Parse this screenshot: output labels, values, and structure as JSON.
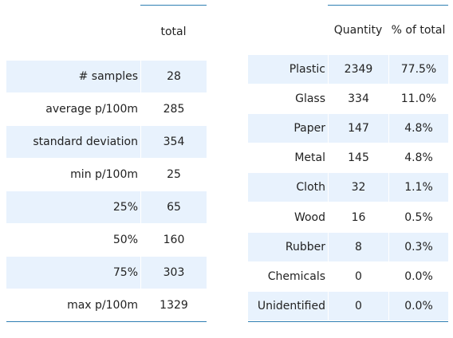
{
  "summary_table": {
    "header": "total",
    "rows": [
      {
        "label": "# samples",
        "value": "28"
      },
      {
        "label": "average p/100m",
        "value": "285"
      },
      {
        "label": "standard deviation",
        "value": "354"
      },
      {
        "label": "min p/100m",
        "value": "25"
      },
      {
        "label": "25%",
        "value": "65"
      },
      {
        "label": "50%",
        "value": "160"
      },
      {
        "label": "75%",
        "value": "303"
      },
      {
        "label": "max p/100m",
        "value": "1329"
      }
    ]
  },
  "material_table": {
    "headers": [
      "Quantity",
      "% of total"
    ],
    "rows": [
      {
        "label": "Plastic",
        "quantity": "2349",
        "percent": "77.5%"
      },
      {
        "label": "Glass",
        "quantity": "334",
        "percent": "11.0%"
      },
      {
        "label": "Paper",
        "quantity": "147",
        "percent": "4.8%"
      },
      {
        "label": "Metal",
        "quantity": "145",
        "percent": "4.8%"
      },
      {
        "label": "Cloth",
        "quantity": "32",
        "percent": "1.1%"
      },
      {
        "label": "Wood",
        "quantity": "16",
        "percent": "0.5%"
      },
      {
        "label": "Rubber",
        "quantity": "8",
        "percent": "0.3%"
      },
      {
        "label": "Chemicals",
        "quantity": "0",
        "percent": "0.0%"
      },
      {
        "label": "Unidentified",
        "quantity": "0",
        "percent": "0.0%"
      }
    ]
  },
  "colors": {
    "row_shade": "#e8f2fd",
    "rule": "#2f7fb3",
    "text": "#222222"
  }
}
